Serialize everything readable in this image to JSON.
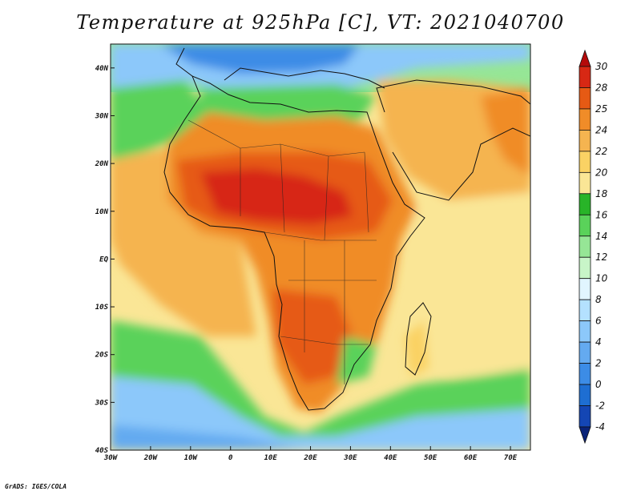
{
  "title": "Temperature at 925hPa [C], VT: 2021040700",
  "credit": "GrADS: IGES/COLA",
  "map": {
    "lon_range": [
      -30,
      75
    ],
    "lat_range": [
      -40,
      45
    ],
    "lat_ticks": [
      {
        "value": 40,
        "label": "40N"
      },
      {
        "value": 30,
        "label": "30N"
      },
      {
        "value": 20,
        "label": "20N"
      },
      {
        "value": 10,
        "label": "10N"
      },
      {
        "value": 0,
        "label": "EQ"
      },
      {
        "value": -10,
        "label": "10S"
      },
      {
        "value": -20,
        "label": "20S"
      },
      {
        "value": -30,
        "label": "30S"
      },
      {
        "value": -40,
        "label": "40S"
      }
    ],
    "lon_ticks": [
      {
        "value": -30,
        "label": "30W"
      },
      {
        "value": -20,
        "label": "20W"
      },
      {
        "value": -10,
        "label": "10W"
      },
      {
        "value": 0,
        "label": "0"
      },
      {
        "value": 10,
        "label": "10E"
      },
      {
        "value": 20,
        "label": "20E"
      },
      {
        "value": 30,
        "label": "30E"
      },
      {
        "value": 40,
        "label": "40E"
      },
      {
        "value": 50,
        "label": "50E"
      },
      {
        "value": 60,
        "label": "60E"
      },
      {
        "value": 70,
        "label": "70E"
      }
    ]
  },
  "colorbar": {
    "levels": [
      "-4",
      "-2",
      "0",
      "2",
      "4",
      "6",
      "8",
      "10",
      "12",
      "14",
      "16",
      "18",
      "20",
      "22",
      "24",
      "25",
      "28",
      "30"
    ],
    "colors": [
      "#0a2378",
      "#1446b4",
      "#1e6ed2",
      "#3c8ce6",
      "#64aaf0",
      "#8cc8fa",
      "#b4e1ff",
      "#e1f5ff",
      "#c8f5c8",
      "#96e696",
      "#5ad25a",
      "#28b428",
      "#fae696",
      "#fad264",
      "#f5b450",
      "#f08c28",
      "#e65a14",
      "#d72814",
      "#b40a0a"
    ]
  }
}
